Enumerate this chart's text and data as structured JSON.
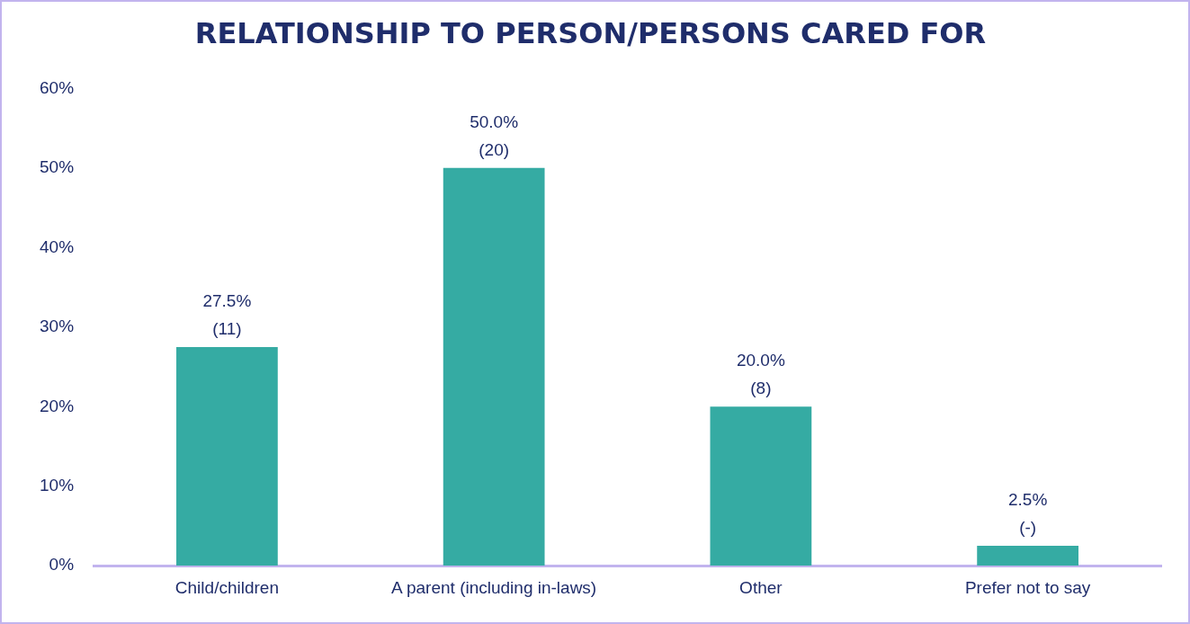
{
  "chart_data": {
    "type": "bar",
    "title": "RELATIONSHIP TO PERSON/PERSONS CARED FOR",
    "categories": [
      "Child/children",
      "A parent (including in-laws)",
      "Other",
      "Prefer not to say"
    ],
    "values": [
      27.5,
      50,
      20,
      2.5
    ],
    "color": "#35aba3",
    "value_labels": [
      "27.5%\n(11)",
      "50.0%\n(20)",
      "20.0%\n(8)",
      "2.5%\n(-)"
    ],
    "ylim": [
      0,
      60
    ],
    "yticks": [
      {
        "value": 0,
        "label": "0%"
      },
      {
        "value": 10,
        "label": "10%"
      },
      {
        "value": 20,
        "label": "20%"
      },
      {
        "value": 30,
        "label": "30%"
      },
      {
        "value": 40,
        "label": "40%"
      },
      {
        "value": 50,
        "label": "50%"
      },
      {
        "value": 60,
        "label": "60%"
      }
    ],
    "grid": false,
    "legend": false
  }
}
